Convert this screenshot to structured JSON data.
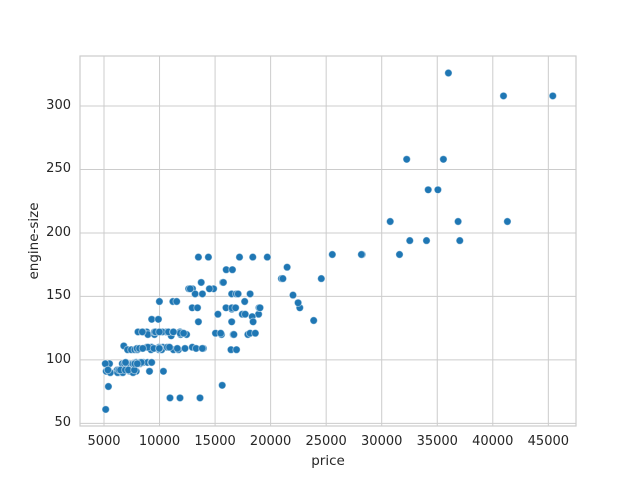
{
  "figure": {
    "background": "#ffffff"
  },
  "chart_data": {
    "type": "scatter",
    "title": "",
    "xlabel": "price",
    "ylabel": "engine-size",
    "xlim": [
      2840,
      47490
    ],
    "ylim": [
      47.9,
      339.4
    ],
    "xticks": [
      5000,
      10000,
      15000,
      20000,
      25000,
      30000,
      35000,
      40000,
      45000
    ],
    "yticks": [
      50,
      100,
      150,
      200,
      250,
      300
    ],
    "grid": true,
    "legend": false,
    "point_color": "#1f77b4",
    "point_edge_color": "#ffffff",
    "grid_color": "#cccccc",
    "spine_color": "#cccccc",
    "text_color": "#262626",
    "points": [
      [
        13495,
        130
      ],
      [
        16500,
        130
      ],
      [
        16500,
        152
      ],
      [
        13950,
        109
      ],
      [
        17450,
        136
      ],
      [
        15250,
        136
      ],
      [
        17710,
        136
      ],
      [
        18920,
        136
      ],
      [
        23875,
        131
      ],
      [
        16430,
        108
      ],
      [
        16925,
        108
      ],
      [
        20970,
        164
      ],
      [
        21105,
        164
      ],
      [
        24565,
        164
      ],
      [
        30760,
        209
      ],
      [
        41315,
        209
      ],
      [
        36880,
        209
      ],
      [
        5151,
        61
      ],
      [
        6295,
        90
      ],
      [
        6575,
        90
      ],
      [
        5572,
        90
      ],
      [
        6377,
        90
      ],
      [
        6229,
        90
      ],
      [
        6692,
        90
      ],
      [
        7609,
        90
      ],
      [
        7957,
        98
      ],
      [
        8558,
        98
      ],
      [
        8921,
        98
      ],
      [
        12964,
        156
      ],
      [
        5399,
        79
      ],
      [
        6479,
        92
      ],
      [
        6529,
        92
      ],
      [
        6855,
        92
      ],
      [
        7129,
        92
      ],
      [
        7295,
        91
      ],
      [
        7295,
        91
      ],
      [
        7895,
        91
      ],
      [
        9095,
        91
      ],
      [
        10345,
        91
      ],
      [
        8845,
        110
      ],
      [
        10295,
        110
      ],
      [
        12945,
        110
      ],
      [
        6785,
        111
      ],
      [
        11048,
        119
      ],
      [
        32250,
        258
      ],
      [
        35550,
        258
      ],
      [
        36000,
        326
      ],
      [
        5195,
        91
      ],
      [
        6095,
        91
      ],
      [
        6795,
        91
      ],
      [
        6695,
        91
      ],
      [
        7395,
        91
      ],
      [
        10945,
        70
      ],
      [
        11845,
        70
      ],
      [
        13645,
        70
      ],
      [
        15645,
        80
      ],
      [
        8845,
        122
      ],
      [
        8495,
        122
      ],
      [
        10595,
        122
      ],
      [
        10245,
        122
      ],
      [
        10795,
        122
      ],
      [
        11245,
        122
      ],
      [
        11845,
        122
      ],
      [
        18344,
        134
      ],
      [
        25552,
        183
      ],
      [
        28248,
        183
      ],
      [
        28176,
        183
      ],
      [
        31600,
        183
      ],
      [
        34184,
        234
      ],
      [
        35056,
        234
      ],
      [
        40960,
        308
      ],
      [
        45400,
        308
      ],
      [
        16503,
        140
      ],
      [
        5389,
        92
      ],
      [
        6189,
        92
      ],
      [
        6669,
        92
      ],
      [
        7689,
        92
      ],
      [
        6989,
        98
      ],
      [
        8189,
        98
      ],
      [
        8499,
        98
      ],
      [
        9279,
        110
      ],
      [
        9279,
        110
      ],
      [
        9959,
        110
      ],
      [
        12629,
        156
      ],
      [
        14869,
        156
      ],
      [
        14489,
        156
      ],
      [
        5499,
        97
      ],
      [
        6649,
        97
      ],
      [
        6849,
        97
      ],
      [
        7099,
        97
      ],
      [
        7299,
        97
      ],
      [
        7349,
        97
      ],
      [
        7499,
        97
      ],
      [
        7699,
        97
      ],
      [
        7799,
        97
      ],
      [
        7999,
        97
      ],
      [
        8249,
        97
      ],
      [
        8949,
        120
      ],
      [
        9549,
        120
      ],
      [
        13499,
        181
      ],
      [
        14399,
        181
      ],
      [
        17199,
        181
      ],
      [
        18399,
        181
      ],
      [
        19699,
        181
      ],
      [
        11900,
        120
      ],
      [
        12440,
        120
      ],
      [
        15580,
        120
      ],
      [
        16630,
        120
      ],
      [
        16695,
        120
      ],
      [
        17950,
        120
      ],
      [
        13200,
        152
      ],
      [
        13860,
        152
      ],
      [
        16900,
        152
      ],
      [
        17075,
        152
      ],
      [
        18150,
        152
      ],
      [
        5572,
        90
      ],
      [
        6229,
        90
      ],
      [
        6692,
        90
      ],
      [
        7609,
        90
      ],
      [
        8558,
        98
      ],
      [
        8921,
        98
      ],
      [
        12764,
        156
      ],
      [
        22018,
        151
      ],
      [
        32528,
        194
      ],
      [
        34028,
        194
      ],
      [
        37028,
        194
      ],
      [
        9295,
        132
      ],
      [
        9895,
        132
      ],
      [
        11850,
        121
      ],
      [
        12170,
        121
      ],
      [
        15040,
        121
      ],
      [
        15510,
        121
      ],
      [
        18150,
        121
      ],
      [
        18620,
        121
      ],
      [
        5118,
        97
      ],
      [
        7053,
        97
      ],
      [
        7603,
        97
      ],
      [
        7126,
        108
      ],
      [
        7463,
        108
      ],
      [
        7775,
        108
      ],
      [
        8013,
        108
      ],
      [
        9233,
        108
      ],
      [
        9960,
        108
      ],
      [
        10198,
        108
      ],
      [
        11259,
        108
      ],
      [
        11694,
        108
      ],
      [
        5348,
        92
      ],
      [
        6338,
        92
      ],
      [
        6488,
        92
      ],
      [
        6918,
        92
      ],
      [
        7198,
        92
      ],
      [
        7738,
        92
      ],
      [
        6938,
        98
      ],
      [
        7788,
        98
      ],
      [
        7898,
        98
      ],
      [
        7898,
        98
      ],
      [
        8238,
        98
      ],
      [
        8358,
        98
      ],
      [
        9258,
        98
      ],
      [
        9298,
        98
      ],
      [
        8948,
        110
      ],
      [
        10698,
        110
      ],
      [
        10898,
        110
      ],
      [
        8058,
        122
      ],
      [
        8449,
        122
      ],
      [
        9539,
        122
      ],
      [
        9639,
        122
      ],
      [
        9989,
        122
      ],
      [
        11248,
        122
      ],
      [
        9988,
        146
      ],
      [
        11199,
        146
      ],
      [
        11549,
        146
      ],
      [
        17669,
        146
      ],
      [
        13748,
        161
      ],
      [
        15690,
        161
      ],
      [
        15750,
        161
      ],
      [
        15998,
        171
      ],
      [
        16558,
        171
      ],
      [
        7775,
        97
      ],
      [
        7995,
        97
      ],
      [
        7975,
        109
      ],
      [
        8195,
        109
      ],
      [
        8495,
        109
      ],
      [
        9495,
        109
      ],
      [
        9995,
        109
      ],
      [
        9980,
        109
      ],
      [
        11595,
        109
      ],
      [
        12290,
        109
      ],
      [
        13295,
        109
      ],
      [
        13845,
        109
      ],
      [
        12940,
        141
      ],
      [
        13415,
        141
      ],
      [
        15985,
        141
      ],
      [
        16515,
        141
      ],
      [
        16845,
        141
      ],
      [
        18950,
        141
      ],
      [
        19045,
        141
      ],
      [
        22625,
        141
      ],
      [
        18420,
        130
      ],
      [
        21485,
        173
      ],
      [
        22470,
        145
      ]
    ]
  }
}
